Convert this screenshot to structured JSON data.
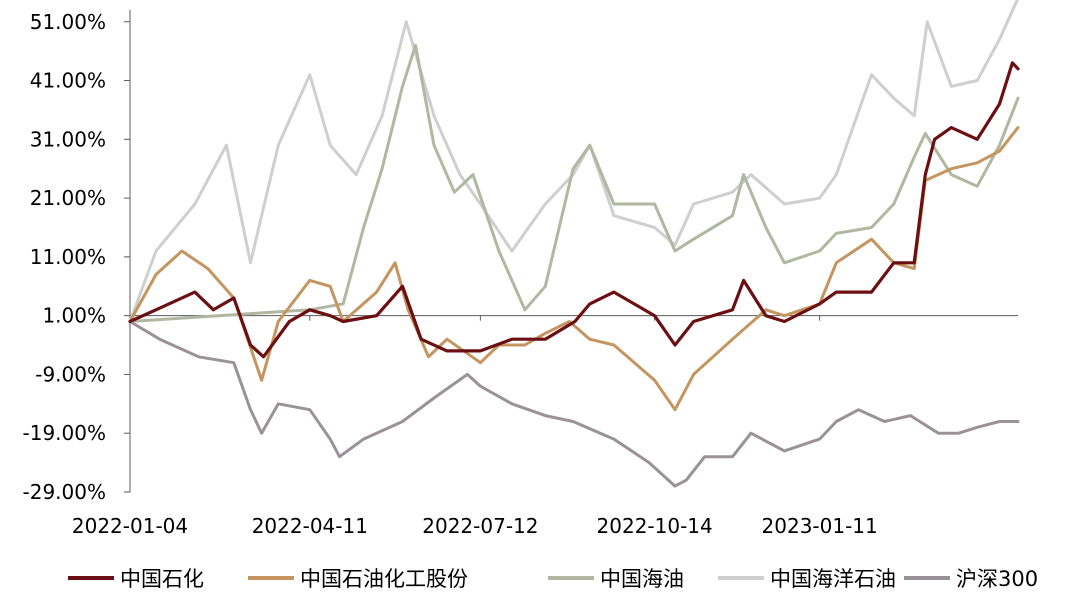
{
  "chart_data": {
    "type": "line",
    "title": "",
    "xlabel": "",
    "ylabel": "",
    "x_tick_labels": [
      "2022-01-04",
      "2022-04-11",
      "2022-07-12",
      "2022-10-14",
      "2023-01-11"
    ],
    "y_tick_labels": [
      "51.00%",
      "41.00%",
      "31.00%",
      "21.00%",
      "11.00%",
      "1.00%",
      "-9.00%",
      "-19.00%",
      "-29.00%"
    ],
    "y_tick_values": [
      51,
      41,
      31,
      21,
      11,
      1,
      -9,
      -19,
      -29
    ],
    "ylim": [
      -29,
      53
    ],
    "x_range": [
      "2022-01-04",
      "2023-04-28"
    ],
    "x_axis_crosses_at": 1,
    "legend_position": "bottom",
    "grid": false,
    "series": [
      {
        "name": "中国石化",
        "color": "#6b0f13",
        "points": [
          [
            "2022-01-04",
            0
          ],
          [
            "2022-01-18",
            2
          ],
          [
            "2022-02-08",
            5
          ],
          [
            "2022-02-18",
            2
          ],
          [
            "2022-03-01",
            4
          ],
          [
            "2022-03-10",
            -4
          ],
          [
            "2022-03-17",
            -6
          ],
          [
            "2022-03-31",
            0
          ],
          [
            "2022-04-11",
            2
          ],
          [
            "2022-04-22",
            1
          ],
          [
            "2022-04-29",
            0
          ],
          [
            "2022-05-17",
            1
          ],
          [
            "2022-05-31",
            6
          ],
          [
            "2022-06-10",
            -3
          ],
          [
            "2022-06-24",
            -5
          ],
          [
            "2022-07-12",
            -5
          ],
          [
            "2022-07-29",
            -3
          ],
          [
            "2022-08-16",
            -3
          ],
          [
            "2022-09-01",
            0
          ],
          [
            "2022-09-09",
            3
          ],
          [
            "2022-09-22",
            5
          ],
          [
            "2022-10-14",
            1
          ],
          [
            "2022-10-25",
            -4
          ],
          [
            "2022-11-04",
            0
          ],
          [
            "2022-11-25",
            2
          ],
          [
            "2022-12-01",
            7
          ],
          [
            "2022-12-13",
            1
          ],
          [
            "2022-12-23",
            0
          ],
          [
            "2023-01-11",
            3
          ],
          [
            "2023-01-20",
            5
          ],
          [
            "2023-02-08",
            5
          ],
          [
            "2023-02-20",
            10
          ],
          [
            "2023-03-03",
            10
          ],
          [
            "2023-03-09",
            25
          ],
          [
            "2023-03-14",
            31
          ],
          [
            "2023-03-23",
            33
          ],
          [
            "2023-04-06",
            31
          ],
          [
            "2023-04-18",
            37
          ],
          [
            "2023-04-25",
            44
          ],
          [
            "2023-04-28",
            43
          ]
        ]
      },
      {
        "name": "中国石油化工股份",
        "color": "#c4955e",
        "points": [
          [
            "2022-01-04",
            0
          ],
          [
            "2022-01-18",
            8
          ],
          [
            "2022-02-01",
            12
          ],
          [
            "2022-02-15",
            9
          ],
          [
            "2022-03-01",
            4
          ],
          [
            "2022-03-16",
            -10
          ],
          [
            "2022-03-25",
            0
          ],
          [
            "2022-04-11",
            7
          ],
          [
            "2022-04-22",
            6
          ],
          [
            "2022-04-29",
            0
          ],
          [
            "2022-05-17",
            5
          ],
          [
            "2022-05-27",
            10
          ],
          [
            "2022-06-03",
            2
          ],
          [
            "2022-06-14",
            -6
          ],
          [
            "2022-06-24",
            -3
          ],
          [
            "2022-07-12",
            -7
          ],
          [
            "2022-07-22",
            -4
          ],
          [
            "2022-08-05",
            -4
          ],
          [
            "2022-08-16",
            -2
          ],
          [
            "2022-08-29",
            0
          ],
          [
            "2022-09-09",
            -3
          ],
          [
            "2022-09-22",
            -4
          ],
          [
            "2022-10-14",
            -10
          ],
          [
            "2022-10-25",
            -15
          ],
          [
            "2022-11-04",
            -9
          ],
          [
            "2022-11-25",
            -3
          ],
          [
            "2022-12-13",
            2
          ],
          [
            "2022-12-23",
            1
          ],
          [
            "2023-01-11",
            3
          ],
          [
            "2023-01-20",
            10
          ],
          [
            "2023-02-08",
            14
          ],
          [
            "2023-02-20",
            10
          ],
          [
            "2023-03-03",
            9
          ],
          [
            "2023-03-09",
            24
          ],
          [
            "2023-03-23",
            26
          ],
          [
            "2023-04-06",
            27
          ],
          [
            "2023-04-18",
            29
          ],
          [
            "2023-04-28",
            33
          ]
        ]
      },
      {
        "name": "中国海油",
        "color": "#b1b7a0",
        "points": [
          [
            "2022-01-04",
            0
          ],
          [
            "2022-04-11",
            2
          ],
          [
            "2022-04-29",
            3
          ],
          [
            "2022-05-10",
            16
          ],
          [
            "2022-05-20",
            26
          ],
          [
            "2022-05-31",
            40
          ],
          [
            "2022-06-07",
            47
          ],
          [
            "2022-06-17",
            30
          ],
          [
            "2022-06-28",
            22
          ],
          [
            "2022-07-08",
            25
          ],
          [
            "2022-07-22",
            12
          ],
          [
            "2022-08-05",
            2
          ],
          [
            "2022-08-16",
            6
          ],
          [
            "2022-08-31",
            26
          ],
          [
            "2022-09-09",
            30
          ],
          [
            "2022-09-22",
            20
          ],
          [
            "2022-10-14",
            20
          ],
          [
            "2022-10-25",
            12
          ],
          [
            "2022-11-04",
            14
          ],
          [
            "2022-11-25",
            18
          ],
          [
            "2022-12-01",
            25
          ],
          [
            "2022-12-13",
            16
          ],
          [
            "2022-12-23",
            10
          ],
          [
            "2023-01-11",
            12
          ],
          [
            "2023-01-20",
            15
          ],
          [
            "2023-02-08",
            16
          ],
          [
            "2023-02-20",
            20
          ],
          [
            "2023-03-03",
            28
          ],
          [
            "2023-03-09",
            32
          ],
          [
            "2023-03-23",
            25
          ],
          [
            "2023-04-06",
            23
          ],
          [
            "2023-04-18",
            30
          ],
          [
            "2023-04-28",
            38
          ]
        ]
      },
      {
        "name": "中国海洋石油",
        "color": "#cfcfcf",
        "points": [
          [
            "2022-01-04",
            0
          ],
          [
            "2022-01-18",
            12
          ],
          [
            "2022-02-08",
            20
          ],
          [
            "2022-02-25",
            30
          ],
          [
            "2022-03-10",
            10
          ],
          [
            "2022-03-25",
            30
          ],
          [
            "2022-04-11",
            42
          ],
          [
            "2022-04-22",
            30
          ],
          [
            "2022-05-06",
            25
          ],
          [
            "2022-05-20",
            35
          ],
          [
            "2022-06-02",
            51
          ],
          [
            "2022-06-17",
            35
          ],
          [
            "2022-07-01",
            25
          ],
          [
            "2022-07-12",
            20
          ],
          [
            "2022-07-29",
            12
          ],
          [
            "2022-08-16",
            20
          ],
          [
            "2022-08-31",
            25
          ],
          [
            "2022-09-09",
            30
          ],
          [
            "2022-09-22",
            18
          ],
          [
            "2022-10-14",
            16
          ],
          [
            "2022-10-25",
            13
          ],
          [
            "2022-11-04",
            20
          ],
          [
            "2022-11-25",
            22
          ],
          [
            "2022-12-05",
            25
          ],
          [
            "2022-12-23",
            20
          ],
          [
            "2023-01-11",
            21
          ],
          [
            "2023-01-20",
            25
          ],
          [
            "2023-02-08",
            42
          ],
          [
            "2023-02-20",
            38
          ],
          [
            "2023-03-03",
            35
          ],
          [
            "2023-03-10",
            51
          ],
          [
            "2023-03-23",
            40
          ],
          [
            "2023-04-06",
            41
          ],
          [
            "2023-04-18",
            48
          ],
          [
            "2023-04-28",
            55
          ]
        ]
      },
      {
        "name": "沪深300",
        "color": "#9a9296",
        "points": [
          [
            "2022-01-04",
            0
          ],
          [
            "2022-01-20",
            -3
          ],
          [
            "2022-02-10",
            -6
          ],
          [
            "2022-03-01",
            -7
          ],
          [
            "2022-03-10",
            -15
          ],
          [
            "2022-03-16",
            -19
          ],
          [
            "2022-03-25",
            -14
          ],
          [
            "2022-04-11",
            -15
          ],
          [
            "2022-04-22",
            -20
          ],
          [
            "2022-04-27",
            -23
          ],
          [
            "2022-05-10",
            -20
          ],
          [
            "2022-05-31",
            -17
          ],
          [
            "2022-06-17",
            -13
          ],
          [
            "2022-07-05",
            -9
          ],
          [
            "2022-07-12",
            -11
          ],
          [
            "2022-07-29",
            -14
          ],
          [
            "2022-08-16",
            -16
          ],
          [
            "2022-08-31",
            -17
          ],
          [
            "2022-09-22",
            -20
          ],
          [
            "2022-10-11",
            -24
          ],
          [
            "2022-10-25",
            -28
          ],
          [
            "2022-10-31",
            -27
          ],
          [
            "2022-11-10",
            -23
          ],
          [
            "2022-11-25",
            -23
          ],
          [
            "2022-12-05",
            -19
          ],
          [
            "2022-12-23",
            -22
          ],
          [
            "2023-01-11",
            -20
          ],
          [
            "2023-01-20",
            -17
          ],
          [
            "2023-02-01",
            -15
          ],
          [
            "2023-02-15",
            -17
          ],
          [
            "2023-03-01",
            -16
          ],
          [
            "2023-03-16",
            -19
          ],
          [
            "2023-03-27",
            -19
          ],
          [
            "2023-04-06",
            -18
          ],
          [
            "2023-04-18",
            -17
          ],
          [
            "2023-04-28",
            -17
          ]
        ]
      }
    ]
  }
}
